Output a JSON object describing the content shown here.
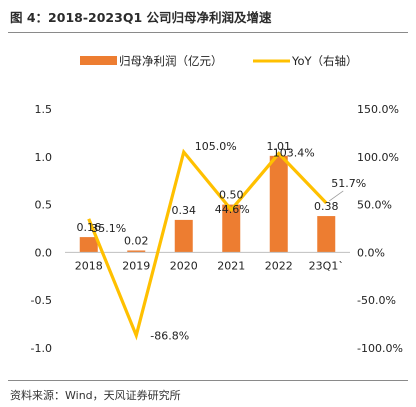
{
  "header": {
    "title": "图 4：2018-2023Q1 公司归母净利润及增速"
  },
  "footer": {
    "source": "资料来源：Wind，天风证券研究所"
  },
  "colors": {
    "bar": "#ED7D31",
    "line": "#FFC000",
    "rule": "#8a8a8a",
    "text": "#222222"
  },
  "chart_data": {
    "type": "bar",
    "categories": [
      "2018",
      "2019",
      "2020",
      "2021",
      "2022",
      "23Q1`"
    ],
    "series": [
      {
        "name": "归母净利润（亿元）",
        "type": "bar",
        "axis": "left",
        "values": [
          0.16,
          0.02,
          0.34,
          0.5,
          1.01,
          0.38
        ],
        "labels": [
          "0.16",
          "0.02",
          "0.34",
          "0.50",
          "1.01",
          "0.38"
        ]
      },
      {
        "name": "YoY（右轴）",
        "type": "line",
        "axis": "right",
        "values": [
          35.1,
          -86.8,
          105.0,
          44.6,
          103.4,
          51.7
        ],
        "labels": [
          "35.1%",
          "-86.8%",
          "105.0%",
          "44.6%",
          "103.4%",
          "51.7%"
        ]
      }
    ],
    "left_axis": {
      "ylim": [
        -1.0,
        1.5
      ],
      "ticks": [
        1.5,
        1.0,
        0.5,
        0.0,
        -0.5,
        -1.0
      ],
      "tick_labels": [
        "1.5",
        "1.0",
        "0.5",
        "0.0",
        "-0.5",
        "-1.0"
      ]
    },
    "right_axis": {
      "ylim": [
        -100,
        150
      ],
      "ticks": [
        150,
        100,
        50,
        0,
        -50,
        -100
      ],
      "tick_labels": [
        "150.0%",
        "100.0%",
        "50.0%",
        "0.0%",
        "-50.0%",
        "-100.0%"
      ]
    },
    "legend_position": "top",
    "grid": false
  }
}
